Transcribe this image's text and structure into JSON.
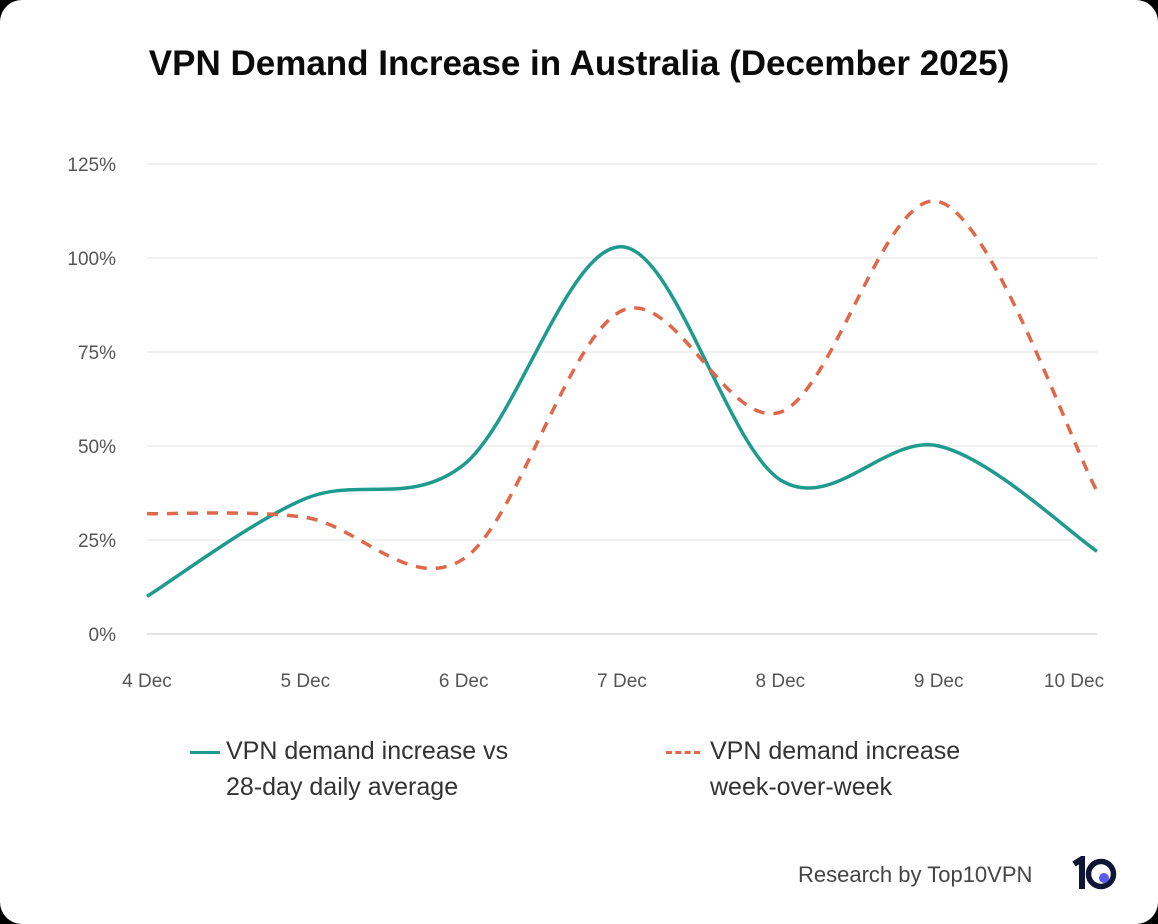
{
  "chart_data": {
    "type": "line",
    "title": "VPN Demand Increase in Australia (December 2025)",
    "xlabel": "",
    "ylabel": "",
    "categories": [
      "4 Dec",
      "5 Dec",
      "6 Dec",
      "7 Dec",
      "8 Dec",
      "9 Dec",
      "10 Dec"
    ],
    "y_ticks": [
      "0%",
      "25%",
      "50%",
      "75%",
      "100%",
      "125%"
    ],
    "ylim": [
      0,
      125
    ],
    "grid": true,
    "legend_placement": "bottom",
    "series": [
      {
        "name": "VPN demand increase vs 28-day daily average",
        "name_lines": [
          "VPN demand increase vs",
          "28-day daily average"
        ],
        "values": [
          10,
          36,
          45,
          103,
          41,
          50,
          22
        ],
        "color": "#1f9a8f",
        "style": "solid"
      },
      {
        "name": "VPN demand increase week-over-week",
        "name_lines": [
          "VPN demand increase",
          "week-over-week"
        ],
        "values": [
          32,
          31,
          20,
          86,
          59,
          115,
          38
        ],
        "color": "#e0684a",
        "style": "dashed"
      }
    ]
  },
  "footer": {
    "credit": "Research by Top10VPN",
    "logo_text": "10",
    "logo_color": "#0f1535",
    "logo_dot_color": "#5b5bf0"
  }
}
